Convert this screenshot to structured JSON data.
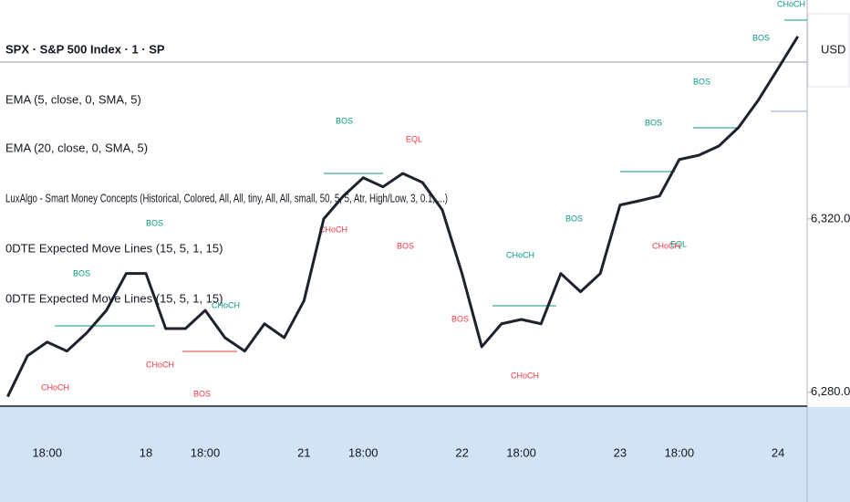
{
  "header": {
    "symbol": "SPX · S&P 500 Index · 1 · SP",
    "currency": "USD"
  },
  "indicators": [
    "EMA (5, close, 0, SMA, 5)",
    "EMA (20, close, 0, SMA, 5)",
    "LuxAlgo - Smart Money Concepts (Historical, Colored, All, All, tiny, All, All, small, 50, 5, 5, Atr, High/Low, 3, 0.1, ...)",
    "0DTE Expected Move Lines (15, 5, 1, 15)",
    "0DTE Expected Move Lines (15, 5, 1, 15)"
  ],
  "annotations": [
    "BOS",
    "CHoCH",
    "BOS",
    "CHoCH",
    "BOS",
    "CHoCH",
    "BOS",
    "EQL",
    "CHoCH",
    "BOS",
    "CHoCH",
    "BOS",
    "CHoCH",
    "BOS",
    "EQL",
    "BOS",
    "CHoCH",
    "BOS",
    "CHoCH",
    "BOS"
  ],
  "chart_data": {
    "type": "line",
    "categories": [
      null,
      null,
      "18:00",
      null,
      null,
      null,
      null,
      "18",
      null,
      null,
      "18:00",
      null,
      null,
      null,
      null,
      "21",
      null,
      null,
      "18:00",
      null,
      null,
      null,
      null,
      "22",
      null,
      null,
      "18:00",
      null,
      null,
      null,
      null,
      "23",
      null,
      null,
      "18:00",
      null,
      null,
      null,
      null,
      "24",
      null
    ],
    "series": [
      {
        "name": "SPX",
        "color": "#1e222d",
        "values": [
          6279.0,
          6288.4,
          6291.6,
          6289.5,
          6293.7,
          6298.9,
          6307.4,
          6307.4,
          6294.7,
          6294.7,
          6298.9,
          6292.6,
          6289.5,
          6295.8,
          6292.6,
          6301.1,
          6320.0,
          6325.3,
          6329.5,
          6327.4,
          6330.5,
          6328.4,
          6322.1,
          6307.4,
          6290.5,
          6295.8,
          6296.8,
          6295.8,
          6307.4,
          6303.2,
          6307.4,
          6323.2,
          6324.2,
          6325.3,
          6333.7,
          6334.7,
          6336.8,
          6341.1,
          6347.4,
          6354.7,
          6362.1
        ]
      }
    ],
    "ylim": [
      6276.8,
      6370.5
    ],
    "yticks": [
      {
        "value": 6280,
        "label": "6,280.00"
      },
      {
        "value": 6320,
        "label": "6,320.00"
      }
    ]
  }
}
